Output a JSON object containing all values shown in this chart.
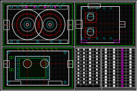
{
  "bg_color": "#080808",
  "lw": "#d0d0d0",
  "lc": "#00bbbb",
  "lr": "#bb0000",
  "lg": "#009900",
  "ly": "#bbbb00",
  "lm": "#990099",
  "lpink": "#cc44cc"
}
